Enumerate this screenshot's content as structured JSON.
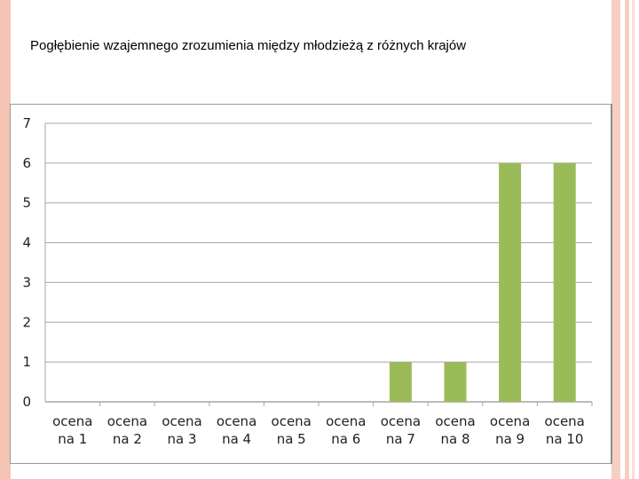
{
  "slide": {
    "title": "Pogłębienie wzajemnego zrozumienia między młodzieżą z różnych krajów"
  },
  "colors": {
    "bar": "#9bbb59",
    "grid": "#a6a6a6",
    "accent_stripe": "#f5c4b4"
  },
  "chart_data": {
    "type": "bar",
    "title": "",
    "xlabel": "",
    "ylabel": "",
    "categories": [
      [
        "ocena",
        "na 1"
      ],
      [
        "ocena",
        "na 2"
      ],
      [
        "ocena",
        "na 3"
      ],
      [
        "ocena",
        "na 4"
      ],
      [
        "ocena",
        "na 5"
      ],
      [
        "ocena",
        "na 6"
      ],
      [
        "ocena",
        "na 7"
      ],
      [
        "ocena",
        "na 8"
      ],
      [
        "ocena",
        "na 9"
      ],
      [
        "ocena",
        "na 10"
      ]
    ],
    "values": [
      0,
      0,
      0,
      0,
      0,
      0,
      1,
      1,
      6,
      6
    ],
    "ylim": [
      0,
      7
    ],
    "yticks": [
      "0",
      "1",
      "2",
      "3",
      "4",
      "5",
      "6",
      "7"
    ],
    "grid": true,
    "legend": "none"
  }
}
